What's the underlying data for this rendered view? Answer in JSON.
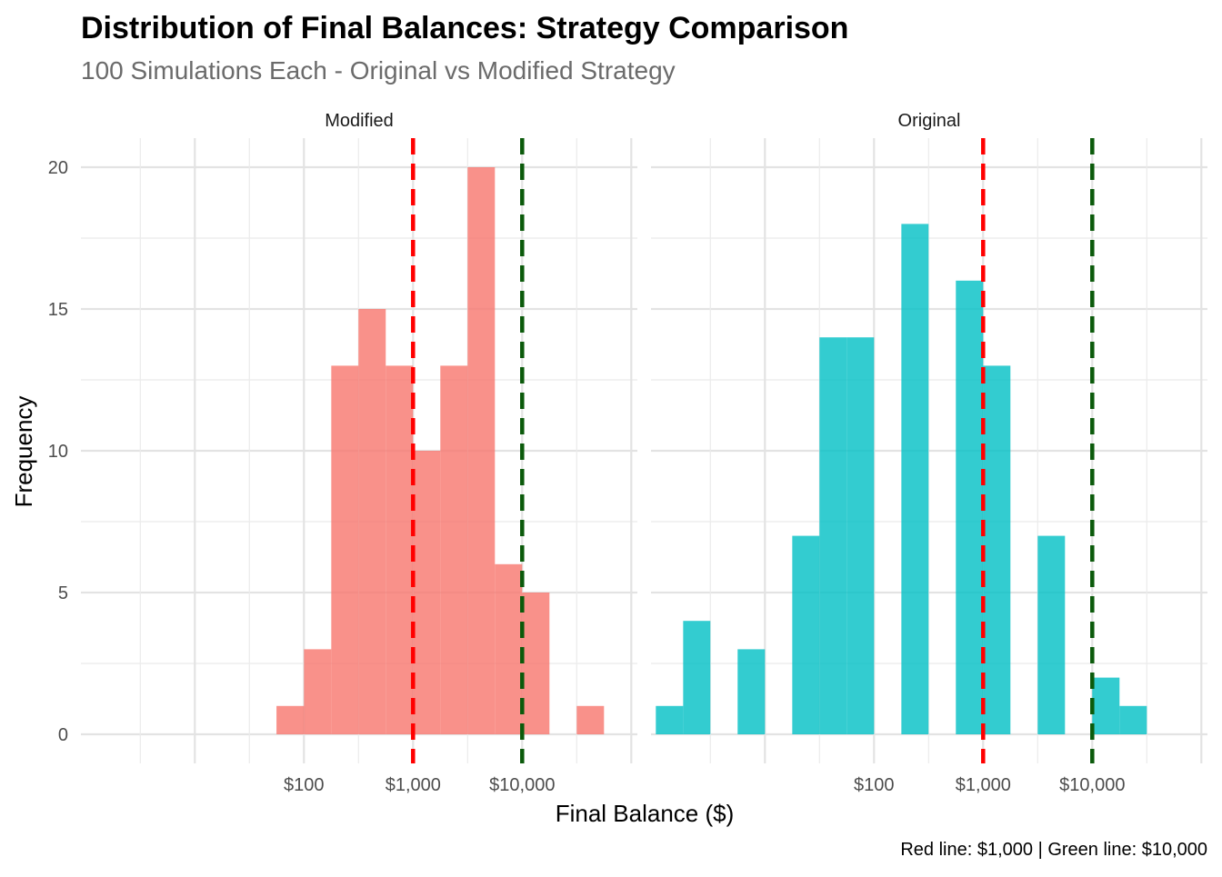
{
  "chart_data": {
    "type": "bar",
    "title": "Distribution of Final Balances: Strategy Comparison",
    "subtitle": "100 Simulations Each - Original vs Modified Strategy",
    "xlabel": "Final Balance ($)",
    "ylabel": "Frequency",
    "caption": "Red line: $1,000 | Green line: $10,000",
    "x_scale": "log10",
    "grid": true,
    "y_range": [
      0,
      21
    ],
    "y_ticks": [
      0,
      5,
      10,
      15,
      20
    ],
    "x_ticks": [
      {
        "value": 100,
        "label": "$100"
      },
      {
        "value": 1000,
        "label": "$1,000"
      },
      {
        "value": 10000,
        "label": "$10,000"
      }
    ],
    "reference_lines": [
      {
        "value": 1000,
        "color": "#ff0000",
        "style": "dashed"
      },
      {
        "value": 10000,
        "color": "#0b5a0b",
        "style": "dashed"
      }
    ],
    "panels": [
      {
        "name": "Modified",
        "color": "#f8766d",
        "bins": [
          {
            "x_from": 56,
            "x_to": 100,
            "count": 1
          },
          {
            "x_from": 100,
            "x_to": 178,
            "count": 3
          },
          {
            "x_from": 178,
            "x_to": 316,
            "count": 13
          },
          {
            "x_from": 316,
            "x_to": 562,
            "count": 15
          },
          {
            "x_from": 562,
            "x_to": 1000,
            "count": 13
          },
          {
            "x_from": 1000,
            "x_to": 1778,
            "count": 10
          },
          {
            "x_from": 1778,
            "x_to": 3162,
            "count": 13
          },
          {
            "x_from": 3162,
            "x_to": 5623,
            "count": 20
          },
          {
            "x_from": 5623,
            "x_to": 10000,
            "count": 6
          },
          {
            "x_from": 10000,
            "x_to": 17783,
            "count": 5
          },
          {
            "x_from": 17783,
            "x_to": 31623,
            "count": 0
          },
          {
            "x_from": 31623,
            "x_to": 56234,
            "count": 1
          }
        ]
      },
      {
        "name": "Original",
        "color": "#00bfc4",
        "bins": [
          {
            "x_from": 1.0,
            "x_to": 1.78,
            "count": 1
          },
          {
            "x_from": 1.78,
            "x_to": 3.16,
            "count": 4
          },
          {
            "x_from": 3.16,
            "x_to": 5.62,
            "count": 0
          },
          {
            "x_from": 5.62,
            "x_to": 10.0,
            "count": 3
          },
          {
            "x_from": 10.0,
            "x_to": 17.8,
            "count": 0
          },
          {
            "x_from": 17.8,
            "x_to": 31.6,
            "count": 7
          },
          {
            "x_from": 31.6,
            "x_to": 56.2,
            "count": 14
          },
          {
            "x_from": 56.2,
            "x_to": 100,
            "count": 14
          },
          {
            "x_from": 100,
            "x_to": 178,
            "count": 0
          },
          {
            "x_from": 178,
            "x_to": 316,
            "count": 18
          },
          {
            "x_from": 316,
            "x_to": 562,
            "count": 0
          },
          {
            "x_from": 562,
            "x_to": 1000,
            "count": 16
          },
          {
            "x_from": 1000,
            "x_to": 1778,
            "count": 13
          },
          {
            "x_from": 1778,
            "x_to": 3162,
            "count": 0
          },
          {
            "x_from": 3162,
            "x_to": 5623,
            "count": 7
          },
          {
            "x_from": 5623,
            "x_to": 10000,
            "count": 0
          },
          {
            "x_from": 10000,
            "x_to": 17783,
            "count": 2
          },
          {
            "x_from": 17783,
            "x_to": 31623,
            "count": 1
          }
        ]
      }
    ]
  }
}
